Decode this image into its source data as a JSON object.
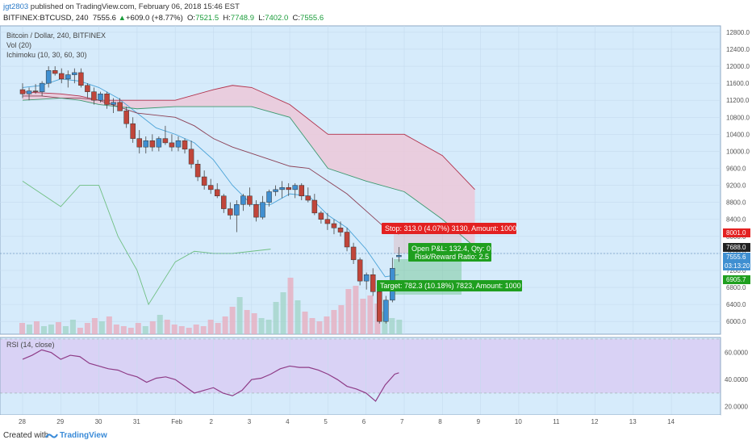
{
  "header": {
    "user": "jgt2803",
    "published": " published on TradingView.com, February 06, 2018 15:46 EST",
    "symbol": "BITFINEX:BTCUSD, 240",
    "price": "7555.6",
    "change_arrow": "▲",
    "change": "+609.0 (+8.77%)",
    "o_label": "O:",
    "o_val": "7521.5",
    "h_label": "H:",
    "h_val": "7748.9",
    "l_label": "L:",
    "l_val": "7402.0",
    "c_label": "C:",
    "c_val": "7555.6"
  },
  "legend": {
    "title": "Bitcoin / Dollar, 240, BITFINEX",
    "vol": "Vol (20)",
    "ichimoku": "Ichimoku (10, 30, 60, 30)",
    "rsi": "RSI (14, close)"
  },
  "annotations": {
    "stop": "Stop: 313.0 (4.07%) 3130, Amount: 1000",
    "open_pl": "Open P&L: 132.4, Qty: 0",
    "risk_reward": "Risk/Reward Ratio: 2.5",
    "target": "Target: 782.3 (10.18%) 7823, Amount: 1000"
  },
  "price_tags": {
    "stop": "8001.0",
    "entry": "7688.0",
    "current": "7555.6",
    "countdown": "03:13:20",
    "target": "6905.7"
  },
  "footer": {
    "created": "Created with",
    "brand": "TradingView"
  },
  "colors": {
    "background": "#d6ebfb",
    "bull": "#3f8fd1",
    "bear": "#c0453a",
    "cloud": "#ecc8d8",
    "tenkan": "#4aa3d8",
    "kijun": "#8b3f55",
    "span_a": "#3d9970",
    "span_b": "#b0304a",
    "chikou": "#6fbf82",
    "rsi_line": "#8e3c87",
    "rsi_band": "#d9d2f5",
    "stop_tag": "#e32121",
    "target_tag": "#1f9f1f"
  },
  "chart_data": [
    {
      "type": "candlestick",
      "title": "Bitcoin / Dollar, 240, BITFINEX",
      "x_tick_labels": [
        "28",
        "29",
        "30",
        "31",
        "Feb",
        "2",
        "3",
        "4",
        "5",
        "6",
        "7",
        "8",
        "9",
        "10",
        "11",
        "12",
        "13",
        "14"
      ],
      "y_tick_labels": [
        "12800.0",
        "12400.0",
        "12000.0",
        "11600.0",
        "11200.0",
        "10800.0",
        "10400.0",
        "10000.0",
        "9600.0",
        "9200.0",
        "8800.0",
        "8400.0",
        "8000.0",
        "7600.0",
        "7200.0",
        "6800.0",
        "6400.0",
        "6000.0"
      ],
      "ylim": [
        5700,
        12950
      ],
      "x_unit": "day index from Jan 28",
      "ohlc": [
        [
          0.0,
          11450,
          11600,
          11250,
          11350
        ],
        [
          0.17,
          11350,
          11500,
          11200,
          11420
        ],
        [
          0.34,
          11420,
          11580,
          11350,
          11400
        ],
        [
          0.51,
          11400,
          11650,
          11300,
          11600
        ],
        [
          0.68,
          11600,
          12000,
          11500,
          11900
        ],
        [
          0.85,
          11900,
          12000,
          11780,
          11830
        ],
        [
          1.02,
          11830,
          11950,
          11600,
          11700
        ],
        [
          1.19,
          11700,
          11900,
          11500,
          11800
        ],
        [
          1.36,
          11800,
          11950,
          11600,
          11850
        ],
        [
          1.53,
          11850,
          11950,
          11500,
          11550
        ],
        [
          1.7,
          11550,
          11600,
          11250,
          11400
        ],
        [
          1.87,
          11400,
          11500,
          11100,
          11200
        ],
        [
          2.04,
          11200,
          11400,
          11150,
          11350
        ],
        [
          2.21,
          11350,
          11400,
          11000,
          11100
        ],
        [
          2.38,
          11100,
          11250,
          10900,
          11150
        ],
        [
          2.55,
          11150,
          11250,
          10950,
          10950
        ],
        [
          2.72,
          10950,
          11050,
          10550,
          10650
        ],
        [
          2.89,
          10650,
          10800,
          10200,
          10300
        ],
        [
          3.06,
          10300,
          10500,
          9950,
          10100
        ],
        [
          3.23,
          10100,
          10350,
          9950,
          10250
        ],
        [
          3.4,
          10250,
          10400,
          10000,
          10100
        ],
        [
          3.57,
          10100,
          10350,
          10000,
          10300
        ],
        [
          3.74,
          10300,
          10600,
          10150,
          10200
        ],
        [
          3.91,
          10200,
          10400,
          10000,
          10100
        ],
        [
          4.08,
          10100,
          10350,
          10000,
          10250
        ],
        [
          4.25,
          10250,
          10300,
          9950,
          10050
        ],
        [
          4.42,
          10050,
          10250,
          9600,
          9700
        ],
        [
          4.59,
          9700,
          9800,
          9300,
          9400
        ],
        [
          4.76,
          9400,
          9550,
          9100,
          9200
        ],
        [
          4.93,
          9200,
          9350,
          9000,
          9100
        ],
        [
          5.1,
          9100,
          9250,
          8900,
          8950
        ],
        [
          5.27,
          8950,
          9000,
          8550,
          8650
        ],
        [
          5.44,
          8650,
          8800,
          8400,
          8500
        ],
        [
          5.61,
          8500,
          8850,
          8100,
          8750
        ],
        [
          5.78,
          8750,
          9000,
          8600,
          8950
        ],
        [
          5.95,
          8950,
          9150,
          8700,
          8750
        ],
        [
          6.12,
          8750,
          8850,
          8350,
          8450
        ],
        [
          6.29,
          8450,
          8950,
          8400,
          8800
        ],
        [
          6.46,
          8800,
          9100,
          8700,
          9050
        ],
        [
          6.63,
          9050,
          9200,
          8950,
          9100
        ],
        [
          6.8,
          9100,
          9300,
          8900,
          9150
        ],
        [
          6.97,
          9150,
          9250,
          8950,
          9100
        ],
        [
          7.14,
          9100,
          9250,
          8900,
          9200
        ],
        [
          7.31,
          9200,
          9250,
          8850,
          8950
        ],
        [
          7.48,
          8950,
          9150,
          8800,
          8850
        ],
        [
          7.65,
          8850,
          9000,
          8500,
          8550
        ],
        [
          7.82,
          8550,
          8600,
          8300,
          8400
        ],
        [
          7.99,
          8400,
          8550,
          8150,
          8300
        ],
        [
          8.16,
          8300,
          8400,
          8050,
          8200
        ],
        [
          8.33,
          8200,
          8350,
          8000,
          8100
        ],
        [
          8.5,
          8100,
          8200,
          7650,
          7750
        ],
        [
          8.67,
          7750,
          7850,
          7350,
          7450
        ],
        [
          8.84,
          7450,
          7500,
          6850,
          6950
        ],
        [
          9.01,
          6950,
          7150,
          6750,
          7100
        ],
        [
          9.18,
          7100,
          7250,
          6600,
          6700
        ],
        [
          9.35,
          6700,
          6800,
          5950,
          6000
        ],
        [
          9.52,
          6000,
          6600,
          5950,
          6500
        ],
        [
          9.69,
          6500,
          7500,
          6450,
          7250
        ],
        [
          9.86,
          7521.5,
          7748.9,
          7402,
          7555.6
        ]
      ],
      "series": [
        {
          "name": "Tenkan",
          "x": [
            0,
            0.5,
            1,
            1.5,
            2,
            2.5,
            3,
            3.5,
            4,
            4.5,
            5,
            5.5,
            6,
            6.5,
            7,
            7.5,
            8,
            8.5,
            9,
            9.5,
            9.86
          ],
          "values": [
            11500,
            11550,
            11700,
            11650,
            11500,
            11250,
            10900,
            10550,
            10400,
            10200,
            9800,
            9200,
            8750,
            8750,
            9000,
            8950,
            8500,
            8200,
            7700,
            7050,
            7100
          ]
        },
        {
          "name": "Kijun",
          "x": [
            0,
            0.5,
            1,
            1.5,
            2,
            2.5,
            3,
            3.5,
            4,
            4.5,
            5,
            5.5,
            6,
            6.5,
            7,
            7.5,
            8,
            8.5,
            9,
            9.5,
            9.86
          ],
          "values": [
            11300,
            11300,
            11250,
            11250,
            11200,
            11050,
            10900,
            10850,
            10800,
            10600,
            10300,
            10100,
            9950,
            9800,
            9650,
            9600,
            9300,
            9000,
            8600,
            8200,
            8050
          ]
        },
        {
          "name": "Span A",
          "x": [
            0,
            1,
            1.5,
            2,
            3,
            4,
            5,
            5.5,
            6,
            7,
            8,
            9,
            10,
            11,
            11.85
          ],
          "values": [
            11200,
            11250,
            11200,
            11100,
            11000,
            11050,
            11050,
            11050,
            11050,
            10800,
            9600,
            9300,
            9050,
            8400,
            7750
          ]
        },
        {
          "name": "Span B",
          "x": [
            0,
            1,
            1.5,
            2,
            3,
            4,
            5,
            5.5,
            6,
            7,
            8,
            9,
            10,
            11,
            11.85
          ],
          "values": [
            11400,
            11350,
            11300,
            11200,
            11200,
            11200,
            11450,
            11550,
            11500,
            11100,
            10400,
            10400,
            10400,
            9900,
            9100
          ]
        },
        {
          "name": "Chikou",
          "x": [
            0,
            1,
            1.5,
            2,
            2.5,
            3,
            3.3,
            4,
            4.5,
            5,
            5.5,
            6,
            6.5
          ],
          "values": [
            9300,
            8700,
            9200,
            9200,
            8000,
            7200,
            6400,
            7400,
            7650,
            7600,
            7600,
            7650,
            7700
          ]
        }
      ],
      "volume": [
        14,
        12,
        16,
        10,
        12,
        15,
        10,
        18,
        8,
        14,
        20,
        16,
        22,
        12,
        10,
        8,
        14,
        10,
        16,
        24,
        18,
        12,
        10,
        8,
        12,
        10,
        18,
        14,
        22,
        34,
        46,
        30,
        26,
        20,
        18,
        40,
        52,
        70,
        42,
        28,
        20,
        16,
        22,
        30,
        36,
        56,
        60,
        44,
        48,
        38,
        28,
        20,
        18
      ]
    },
    {
      "type": "line",
      "title": "RSI (14, close)",
      "y_tick_labels": [
        "60.0000",
        "40.0000",
        "20.0000"
      ],
      "ylim": [
        15,
        70
      ],
      "band": [
        30,
        70
      ],
      "x": [
        0,
        0.25,
        0.5,
        0.75,
        1,
        1.25,
        1.5,
        1.75,
        2,
        2.25,
        2.5,
        2.75,
        3,
        3.25,
        3.5,
        3.75,
        4,
        4.25,
        4.5,
        4.75,
        5,
        5.25,
        5.5,
        5.75,
        6,
        6.25,
        6.5,
        6.75,
        7,
        7.25,
        7.5,
        7.75,
        8,
        8.25,
        8.5,
        8.75,
        9,
        9.25,
        9.5,
        9.75,
        9.86
      ],
      "values": [
        55,
        58,
        62,
        60,
        55,
        58,
        57,
        52,
        50,
        48,
        47,
        44,
        42,
        38,
        41,
        42,
        40,
        35,
        30,
        32,
        34,
        30,
        28,
        32,
        40,
        41,
        44,
        48,
        50,
        49,
        49,
        47,
        44,
        40,
        35,
        33,
        30,
        24,
        36,
        44,
        45
      ]
    }
  ]
}
